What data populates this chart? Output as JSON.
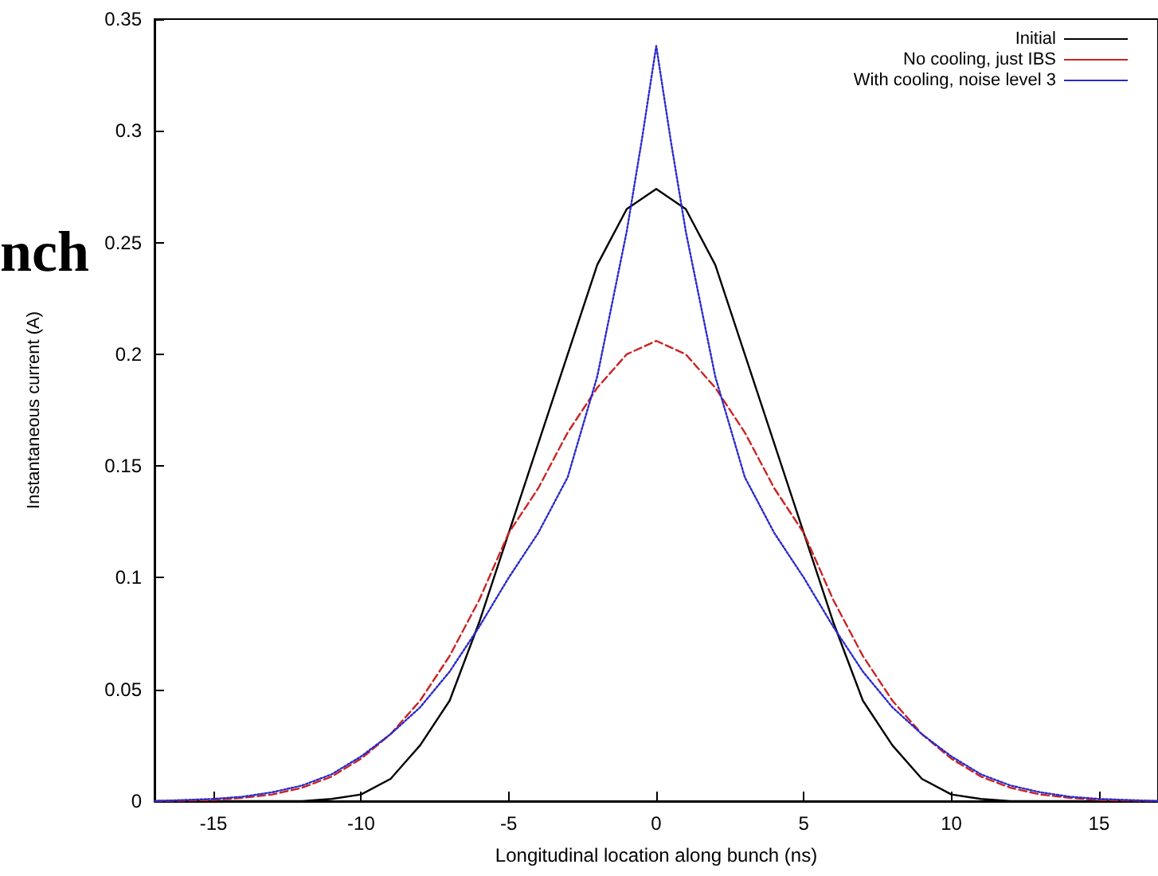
{
  "chart_data": {
    "type": "line",
    "xlabel": "Longitudinal location along bunch (ns)",
    "ylabel": "Instantaneous current (A)",
    "annotations": [
      "nch"
    ],
    "xlim": [
      -17,
      17
    ],
    "xticks": [
      -15,
      -10,
      -5,
      0,
      5,
      10,
      15
    ],
    "ylim": [
      0,
      0.35
    ],
    "yticks": [
      0,
      0.05,
      0.1,
      0.15,
      0.2,
      0.25,
      0.3,
      0.35
    ],
    "grid": false,
    "legend": "top right",
    "marker": "none",
    "series": [
      {
        "name": "Initial",
        "color": "#000000",
        "line_style": "solid",
        "x": [
          -17,
          -12,
          -11,
          -10,
          -9,
          -8,
          -7,
          -6,
          -5,
          -4,
          -3,
          -2,
          -1,
          0,
          1,
          2,
          3,
          4,
          5,
          6,
          7,
          8,
          9,
          10,
          11,
          12,
          17
        ],
        "values": [
          0,
          0,
          0.001,
          0.003,
          0.01,
          0.025,
          0.045,
          0.08,
          0.12,
          0.16,
          0.2,
          0.24,
          0.265,
          0.274,
          0.265,
          0.24,
          0.2,
          0.16,
          0.12,
          0.08,
          0.045,
          0.025,
          0.01,
          0.003,
          0.001,
          0,
          0
        ]
      },
      {
        "name": "No cooling, just IBS",
        "color": "#cc2222",
        "line_style": "dashed",
        "x": [
          -17,
          -15,
          -14,
          -13,
          -12,
          -11,
          -10,
          -9,
          -8,
          -7,
          -6,
          -5,
          -4,
          -3,
          -2,
          -1,
          0,
          1,
          2,
          3,
          4,
          5,
          6,
          7,
          8,
          9,
          10,
          11,
          12,
          13,
          14,
          15,
          17
        ],
        "values": [
          0,
          0.0005,
          0.0015,
          0.003,
          0.006,
          0.011,
          0.019,
          0.03,
          0.045,
          0.065,
          0.09,
          0.12,
          0.14,
          0.165,
          0.185,
          0.2,
          0.206,
          0.2,
          0.185,
          0.165,
          0.14,
          0.12,
          0.09,
          0.065,
          0.045,
          0.03,
          0.019,
          0.011,
          0.006,
          0.003,
          0.0015,
          0.0005,
          0
        ]
      },
      {
        "name": "With cooling, noise level 3",
        "color": "#2a2acc",
        "line_style": "dotted",
        "x": [
          -17,
          -15,
          -14,
          -13,
          -12,
          -11,
          -10,
          -9,
          -8,
          -7,
          -6,
          -5,
          -4,
          -3,
          -2,
          -1,
          -0.5,
          0,
          0.5,
          1,
          2,
          3,
          4,
          5,
          6,
          7,
          8,
          9,
          10,
          11,
          12,
          13,
          14,
          15,
          17
        ],
        "values": [
          0,
          0.001,
          0.002,
          0.004,
          0.007,
          0.012,
          0.02,
          0.03,
          0.042,
          0.058,
          0.078,
          0.1,
          0.12,
          0.145,
          0.19,
          0.255,
          0.295,
          0.338,
          0.295,
          0.255,
          0.19,
          0.145,
          0.12,
          0.1,
          0.078,
          0.058,
          0.042,
          0.03,
          0.02,
          0.012,
          0.007,
          0.004,
          0.002,
          0.001,
          0
        ]
      }
    ]
  }
}
